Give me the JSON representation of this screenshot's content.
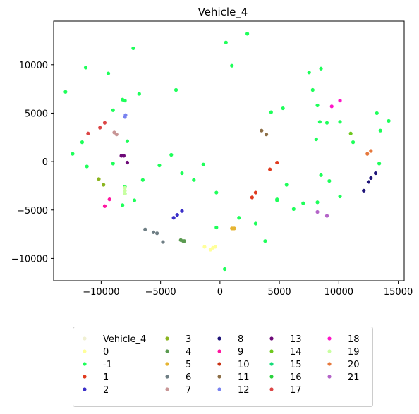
{
  "chart_data": {
    "type": "scatter",
    "title": "Vehicle_4",
    "xlabel": "",
    "ylabel": "",
    "xlim": [
      -14000,
      15500
    ],
    "ylim": [
      -12300,
      14500
    ],
    "x_ticks": [
      -10000,
      -5000,
      0,
      5000,
      10000,
      15000
    ],
    "y_ticks": [
      -10000,
      -5000,
      0,
      5000,
      10000
    ],
    "x_tick_labels": [
      "−10000",
      "−5000",
      "0",
      "5000",
      "10000",
      "15000"
    ],
    "y_tick_labels": [
      "−10000",
      "−5000",
      "0",
      "5000",
      "10000"
    ],
    "grid": false,
    "legend_position": "below",
    "legend_columns": 5,
    "series": [
      {
        "name": "Vehicle_4",
        "color": "#f0f0d2",
        "points": []
      },
      {
        "name": "0",
        "color": "#ffff99",
        "points": [
          [
            -1300,
            -8800
          ],
          [
            -800,
            -9100
          ],
          [
            -600,
            -8900
          ],
          [
            -400,
            -8800
          ]
        ]
      },
      {
        "name": "-1",
        "color": "#1eff5a",
        "points": [
          [
            -13000,
            7200
          ],
          [
            -11300,
            9700
          ],
          [
            -9400,
            9100
          ],
          [
            -7300,
            11700
          ],
          [
            -12400,
            800
          ],
          [
            -11600,
            2000
          ],
          [
            -11200,
            -500
          ],
          [
            -9000,
            5300
          ],
          [
            -9000,
            -200
          ],
          [
            -8200,
            6400
          ],
          [
            -8000,
            6300
          ],
          [
            -7800,
            2100
          ],
          [
            -7200,
            -4000
          ],
          [
            -6800,
            7000
          ],
          [
            -6500,
            -1900
          ],
          [
            -5100,
            -400
          ],
          [
            -4100,
            700
          ],
          [
            -3700,
            7400
          ],
          [
            -3200,
            -1200
          ],
          [
            -2200,
            -1900
          ],
          [
            -1400,
            -300
          ],
          [
            -300,
            -3200
          ],
          [
            -300,
            -6800
          ],
          [
            400,
            -11100
          ],
          [
            500,
            12300
          ],
          [
            1000,
            9900
          ],
          [
            1600,
            -5800
          ],
          [
            2300,
            13200
          ],
          [
            3000,
            -6400
          ],
          [
            3800,
            -8200
          ],
          [
            4300,
            5100
          ],
          [
            4800,
            -4000
          ],
          [
            5300,
            5500
          ],
          [
            5600,
            -2400
          ],
          [
            6200,
            -4900
          ],
          [
            7000,
            -4300
          ],
          [
            7500,
            9200
          ],
          [
            7800,
            7400
          ],
          [
            8100,
            2300
          ],
          [
            8200,
            5800
          ],
          [
            8400,
            4100
          ],
          [
            8500,
            9600
          ],
          [
            8500,
            -1400
          ],
          [
            9000,
            4000
          ],
          [
            9200,
            -2000
          ],
          [
            10100,
            4100
          ],
          [
            10100,
            -3600
          ],
          [
            11200,
            2000
          ],
          [
            13200,
            5000
          ],
          [
            13400,
            -200
          ],
          [
            13500,
            3200
          ],
          [
            14200,
            4200
          ],
          [
            -8000,
            -2600
          ],
          [
            -8000,
            -3300
          ],
          [
            -8200,
            -4500
          ],
          [
            4800,
            -3900
          ],
          [
            8200,
            -4200
          ]
        ]
      },
      {
        "name": "1",
        "color": "#e03a1e",
        "points": [
          [
            2700,
            -3700
          ],
          [
            3000,
            -3200
          ],
          [
            4200,
            -800
          ],
          [
            4800,
            -100
          ]
        ]
      },
      {
        "name": "2",
        "color": "#3a2fc8",
        "points": [
          [
            -3900,
            -5800
          ],
          [
            -3600,
            -5500
          ],
          [
            -3200,
            -5100
          ]
        ]
      },
      {
        "name": "3",
        "color": "#8ab41e",
        "points": [
          [
            -10200,
            -1800
          ],
          [
            -9800,
            -2400
          ]
        ]
      },
      {
        "name": "4",
        "color": "#5a9a50",
        "points": [
          [
            -3300,
            -8100
          ],
          [
            -3100,
            -8200
          ],
          [
            -3000,
            -8200
          ]
        ]
      },
      {
        "name": "5",
        "color": "#e6b432",
        "points": [
          [
            1000,
            -6900
          ],
          [
            1100,
            -6900
          ],
          [
            1200,
            -6900
          ]
        ]
      },
      {
        "name": "6",
        "color": "#6e7e84",
        "points": [
          [
            -6300,
            -7000
          ],
          [
            -5600,
            -7300
          ],
          [
            -5300,
            -7400
          ],
          [
            -4800,
            -8300
          ]
        ]
      },
      {
        "name": "7",
        "color": "#c89696",
        "points": [
          [
            -8900,
            3000
          ],
          [
            -8700,
            2800
          ]
        ]
      },
      {
        "name": "8",
        "color": "#1e1478",
        "points": [
          [
            12100,
            -3000
          ],
          [
            12500,
            -2100
          ],
          [
            12700,
            -1700
          ],
          [
            13100,
            -1200
          ]
        ]
      },
      {
        "name": "9",
        "color": "#ff14a0",
        "points": [
          [
            -9700,
            -4600
          ],
          [
            -9300,
            -3900
          ]
        ]
      },
      {
        "name": "10",
        "color": "#c83214",
        "points": []
      },
      {
        "name": "11",
        "color": "#8c6e46",
        "points": [
          [
            3500,
            3200
          ],
          [
            3900,
            2800
          ]
        ]
      },
      {
        "name": "12",
        "color": "#7882f0",
        "points": [
          [
            -8000,
            4600
          ],
          [
            -7950,
            4800
          ]
        ]
      },
      {
        "name": "13",
        "color": "#6e0a78",
        "points": [
          [
            -8300,
            600
          ],
          [
            -8100,
            600
          ],
          [
            -7800,
            -100
          ]
        ]
      },
      {
        "name": "14",
        "color": "#6ec81e",
        "points": [
          [
            11000,
            2900
          ]
        ]
      },
      {
        "name": "15",
        "color": "#14dc78",
        "points": []
      },
      {
        "name": "16",
        "color": "#28d23c",
        "points": []
      },
      {
        "name": "17",
        "color": "#dc4646",
        "points": [
          [
            -11100,
            2900
          ],
          [
            -10100,
            3500
          ],
          [
            -9700,
            4000
          ]
        ]
      },
      {
        "name": "18",
        "color": "#ff14c8",
        "points": [
          [
            9400,
            5700
          ],
          [
            10100,
            6300
          ]
        ]
      },
      {
        "name": "19",
        "color": "#c8ffa0",
        "points": [
          [
            -8000,
            -2700
          ],
          [
            -8000,
            -3000
          ],
          [
            -8000,
            -3300
          ]
        ]
      },
      {
        "name": "20",
        "color": "#e6783c",
        "points": [
          [
            12400,
            800
          ],
          [
            12700,
            1100
          ]
        ]
      },
      {
        "name": "21",
        "color": "#b464c8",
        "points": [
          [
            8200,
            -5200
          ],
          [
            9000,
            -5600
          ]
        ]
      }
    ]
  }
}
